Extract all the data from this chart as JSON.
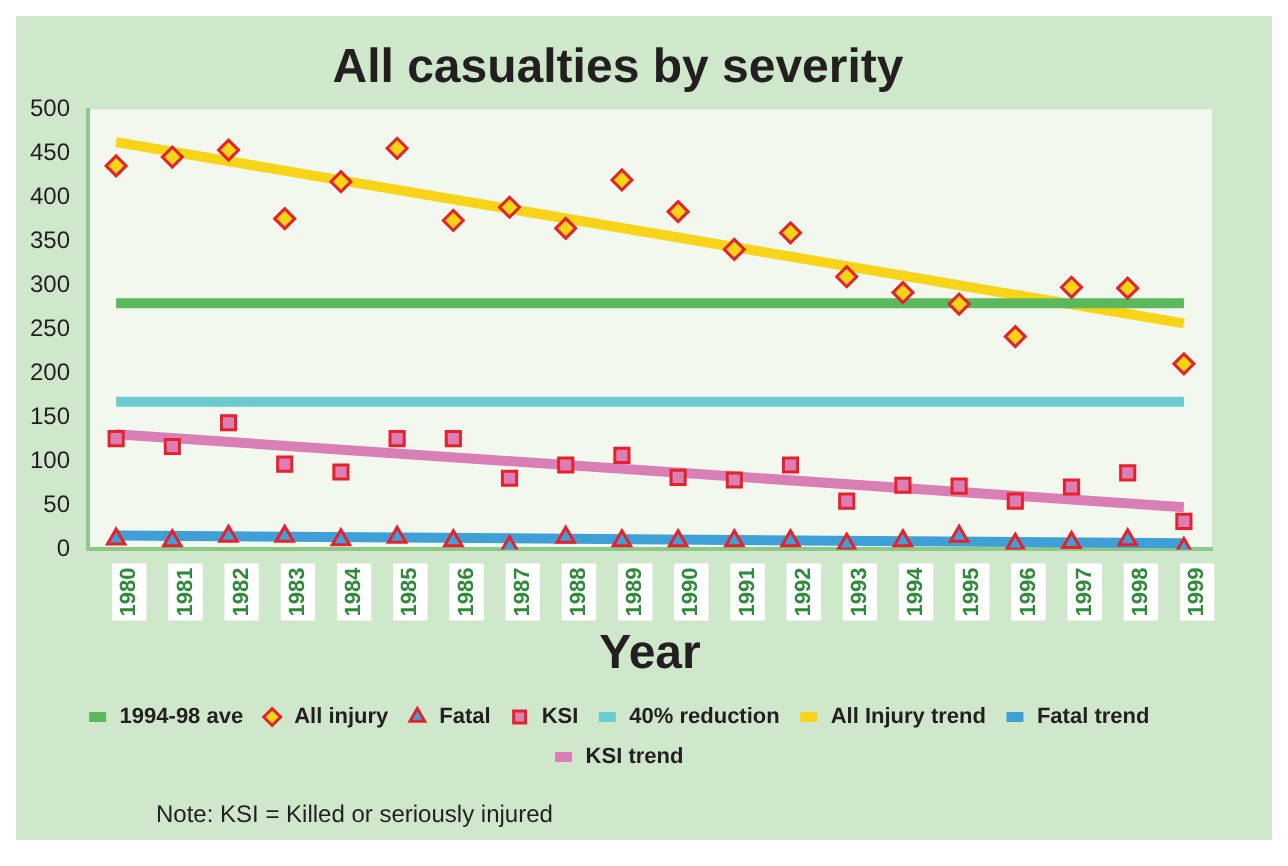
{
  "chart_data": {
    "type": "line",
    "title": "All casualties by severity",
    "xlabel": "Year",
    "categories": [
      "1980",
      "1981",
      "1982",
      "1983",
      "1984",
      "1985",
      "1986",
      "1987",
      "1988",
      "1989",
      "1990",
      "1991",
      "1992",
      "1993",
      "1994",
      "1995",
      "1996",
      "1997",
      "1998",
      "1999"
    ],
    "ylim": [
      0,
      500
    ],
    "yticks": [
      0,
      50,
      100,
      150,
      200,
      250,
      300,
      350,
      400,
      450,
      500
    ],
    "grid": false,
    "legend": "bottom",
    "annotations": [
      "Note: KSI = Killed or seriously injured"
    ],
    "series": [
      {
        "name": "1994-98 ave",
        "marker": "none",
        "color": "#5cb85c",
        "values": [
          280,
          null,
          null,
          null,
          null,
          null,
          null,
          null,
          null,
          null,
          null,
          null,
          null,
          null,
          null,
          null,
          null,
          null,
          null,
          280
        ]
      },
      {
        "name": "All injury",
        "type": "scatter",
        "marker": "diamond",
        "color": "#f7d417",
        "values": [
          436,
          446,
          454,
          376,
          418,
          456,
          374,
          389,
          365,
          420,
          384,
          341,
          360,
          310,
          292,
          279,
          242,
          298,
          297,
          211
        ]
      },
      {
        "name": "Fatal",
        "type": "scatter",
        "marker": "triangle",
        "color": "#3fa0d8",
        "values": [
          12,
          10,
          15,
          15,
          11,
          14,
          10,
          3,
          14,
          10,
          10,
          10,
          10,
          6,
          10,
          15,
          6,
          8,
          11,
          1
        ]
      },
      {
        "name": "KSI",
        "type": "scatter",
        "marker": "square",
        "color": "#d97fb5",
        "values": [
          126,
          117,
          144,
          97,
          88,
          126,
          126,
          81,
          96,
          107,
          82,
          79,
          96,
          55,
          73,
          72,
          55,
          71,
          87,
          32
        ]
      },
      {
        "name": "40% reduction",
        "marker": "none",
        "color": "#6ccbcf",
        "values": [
          168,
          null,
          null,
          null,
          null,
          null,
          null,
          null,
          null,
          null,
          null,
          null,
          null,
          null,
          null,
          null,
          null,
          null,
          null,
          168
        ]
      },
      {
        "name": "All Injury trend",
        "marker": "none",
        "color": "#f7d417",
        "values": [
          463,
          null,
          null,
          null,
          null,
          null,
          null,
          null,
          null,
          null,
          null,
          null,
          null,
          null,
          null,
          null,
          null,
          null,
          null,
          257
        ]
      },
      {
        "name": "Fatal trend",
        "marker": "none",
        "color": "#3fa0d8",
        "values": [
          16,
          null,
          null,
          null,
          null,
          null,
          null,
          null,
          null,
          null,
          null,
          null,
          null,
          null,
          null,
          null,
          null,
          null,
          null,
          7
        ]
      },
      {
        "name": "KSI trend",
        "marker": "none",
        "color": "#d97fb5",
        "values": [
          131,
          null,
          null,
          null,
          null,
          null,
          null,
          null,
          null,
          null,
          null,
          null,
          null,
          null,
          null,
          null,
          null,
          null,
          null,
          48
        ]
      }
    ]
  }
}
